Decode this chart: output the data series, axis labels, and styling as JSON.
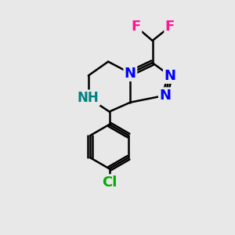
{
  "bg_color": "#e8e8e8",
  "bond_color": "#000000",
  "bond_width": 1.8,
  "atom_colors": {
    "N": "#0000ff",
    "NH": "#008080",
    "F": "#ff1493",
    "Cl": "#00aa00",
    "C": "#000000"
  },
  "font_size_atoms": 13,
  "font_size_H": 10
}
